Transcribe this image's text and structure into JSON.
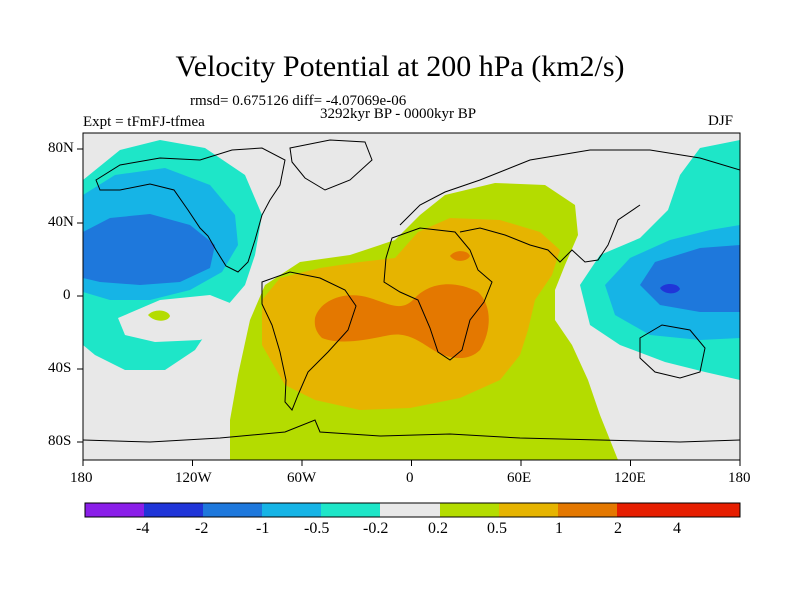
{
  "title": "Velocity Potential at 200 hPa (km2/s)",
  "stats": "rmsd= 0.675126 diff= -4.07069e-06",
  "period": "3292kyr BP - 0000kyr BP",
  "experiment": "Expt = tFmFJ-tfmea",
  "season": "DJF",
  "axes": {
    "x_ticks": [
      "180",
      "120W",
      "60W",
      "0",
      "60E",
      "120E",
      "180"
    ],
    "y_ticks": [
      "80N",
      "40N",
      "0",
      "40S",
      "80S"
    ]
  },
  "colorbar": {
    "labels": [
      "-4",
      "-2",
      "-1",
      "-0.5",
      "-0.2",
      "0.2",
      "0.5",
      "1",
      "2",
      "4"
    ],
    "colors": [
      "#8a1ee8",
      "#2035d8",
      "#1e78dc",
      "#16b4e6",
      "#1ee6c8",
      "#e8e8e8",
      "#b4dc00",
      "#e6b400",
      "#e47800",
      "#e61e00"
    ]
  },
  "map_colors": {
    "neutral": "#e8e8e8",
    "teal": "#1ee6c8",
    "cyan": "#16b4e6",
    "blue": "#1e78dc",
    "darkblue": "#2035d8",
    "yellowgreen": "#b4dc00",
    "gold": "#e6b400",
    "orange": "#e47800",
    "coast": "#000000"
  }
}
